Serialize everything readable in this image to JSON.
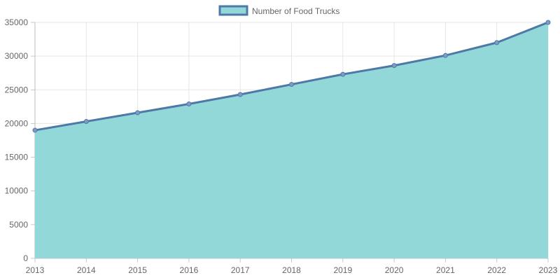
{
  "chart_data": {
    "type": "area",
    "title": "",
    "xlabel": "",
    "ylabel": "",
    "legend": {
      "position": "top-center"
    },
    "grid": true,
    "categories": [
      "2013",
      "2014",
      "2015",
      "2016",
      "2017",
      "2018",
      "2019",
      "2020",
      "2021",
      "2022",
      "2023"
    ],
    "yticks": [
      0,
      5000,
      10000,
      15000,
      20000,
      25000,
      30000,
      35000
    ],
    "ylim": [
      0,
      35000
    ],
    "series": [
      {
        "name": "Number of Food Trucks",
        "values": [
          19000,
          20300,
          21600,
          22900,
          24300,
          25800,
          27300,
          28600,
          30100,
          32000,
          35000
        ],
        "line_color": "#4e79a7",
        "fill_color": "#93d8d9"
      }
    ]
  }
}
